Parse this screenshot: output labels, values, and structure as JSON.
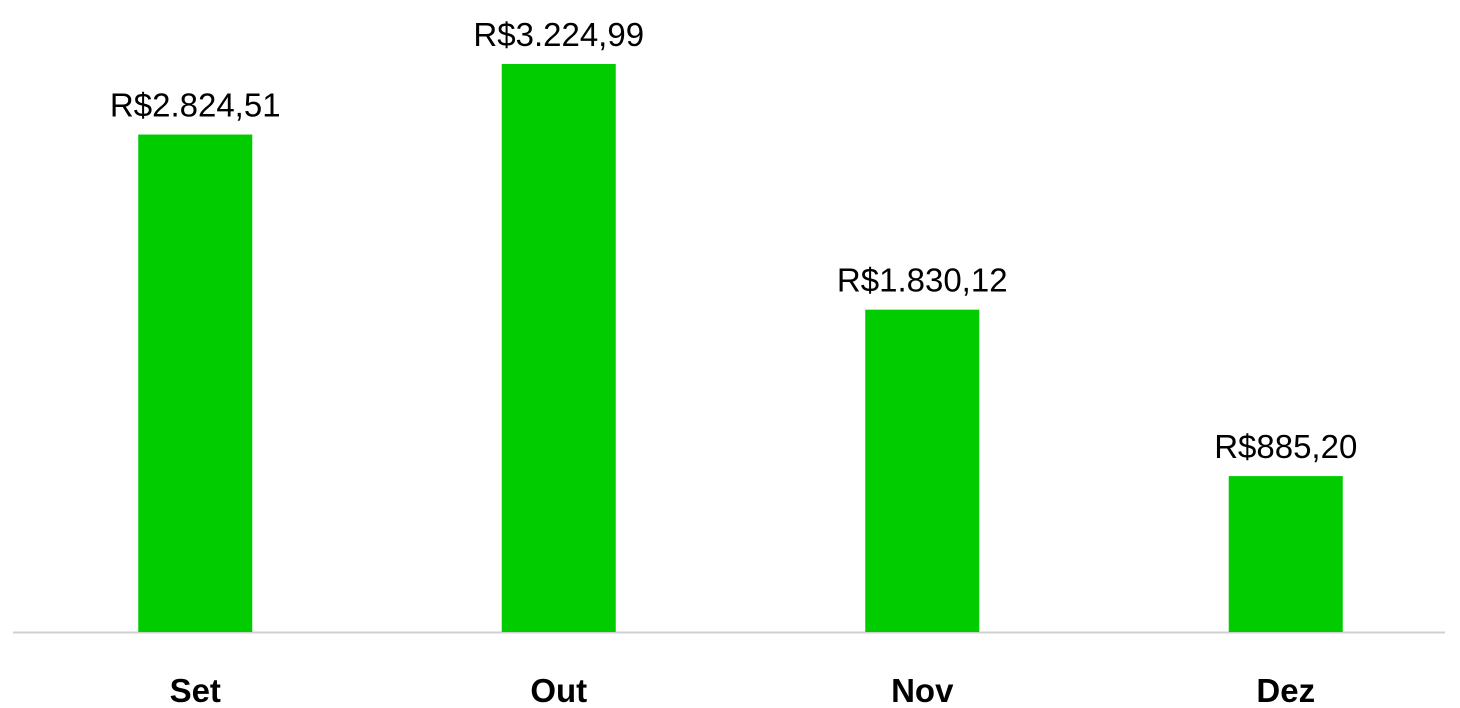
{
  "chart_data": {
    "type": "bar",
    "categories": [
      "Set",
      "Out",
      "Nov",
      "Dez"
    ],
    "values": [
      2824.51,
      3224.99,
      1830.12,
      885.2
    ],
    "value_labels": [
      "R$2.824,51",
      "R$3.224,99",
      "R$1.830,12",
      "R$885,20"
    ],
    "color": "#00cc00"
  }
}
